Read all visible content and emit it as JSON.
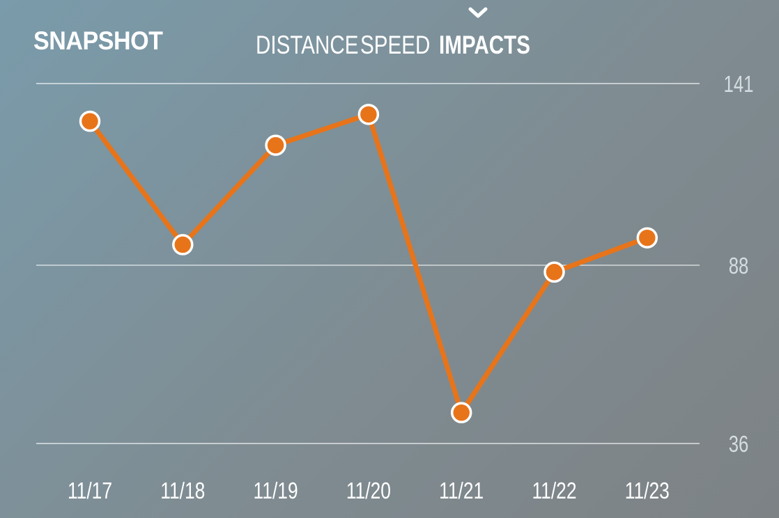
{
  "header": {
    "title": "SNAPSHOT",
    "tabs": [
      {
        "label": "DISTANCE",
        "active": false
      },
      {
        "label": "SPEED",
        "active": false
      },
      {
        "label": "IMPACTS",
        "active": true
      }
    ]
  },
  "colors": {
    "accent": "#e8741a",
    "gridline": "#ffffff",
    "axis_label": "#d5dde2"
  },
  "icons": {
    "active_tab_indicator": "chevron-down-icon"
  },
  "chart_data": {
    "type": "line",
    "categories": [
      "11/17",
      "11/18",
      "11/19",
      "11/20",
      "11/21",
      "11/22",
      "11/23"
    ],
    "series": [
      {
        "values": [
          130,
          94,
          123,
          132,
          45,
          86,
          96
        ]
      }
    ],
    "y_ticks": [
      141,
      88,
      36
    ],
    "ylim": [
      36,
      141
    ],
    "grid": true,
    "y_axis_side": "right"
  }
}
